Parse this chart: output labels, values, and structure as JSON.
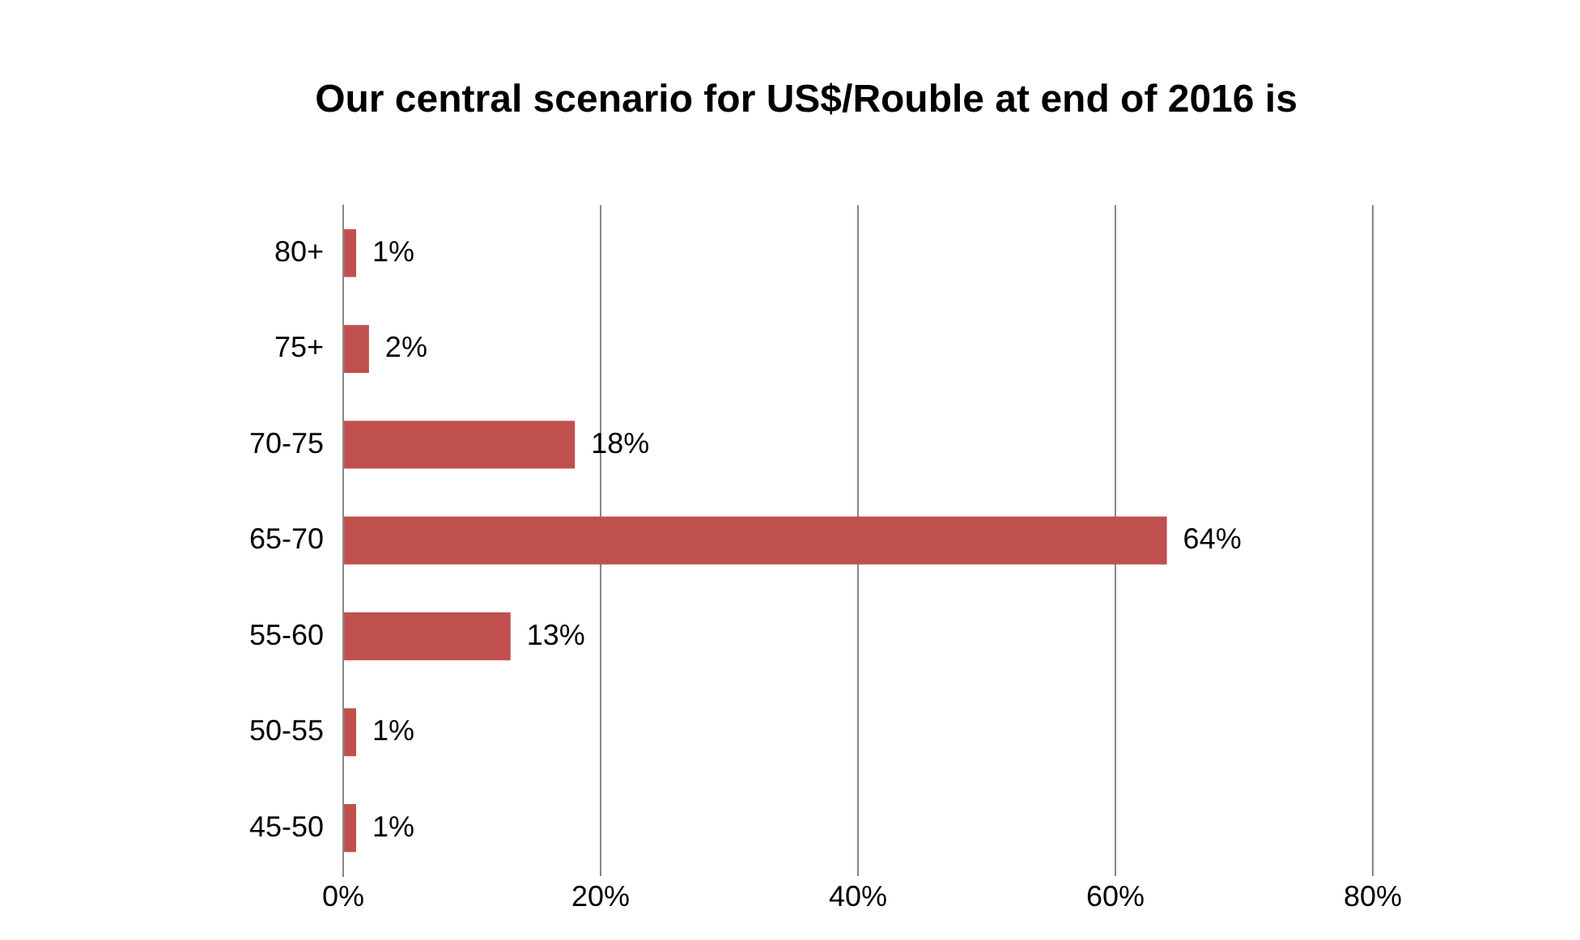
{
  "chart_data": {
    "type": "bar",
    "orientation": "horizontal",
    "title": "Our central scenario for US$/Rouble at end of 2016 is",
    "categories": [
      "80+",
      "75+",
      "70-75",
      "65-70",
      "55-60",
      "50-55",
      "45-50"
    ],
    "values": [
      1,
      2,
      18,
      64,
      13,
      1,
      1
    ],
    "value_labels": [
      "1%",
      "2%",
      "18%",
      "64%",
      "13%",
      "1%",
      "1%"
    ],
    "color": "#c0504d",
    "xlim": [
      0,
      80
    ],
    "xticks": [
      {
        "value": 0,
        "label": "0%"
      },
      {
        "value": 20,
        "label": "20%"
      },
      {
        "value": 40,
        "label": "40%"
      },
      {
        "value": 60,
        "label": "60%"
      },
      {
        "value": 80,
        "label": "80%"
      }
    ],
    "grid": "x",
    "legend": false
  }
}
